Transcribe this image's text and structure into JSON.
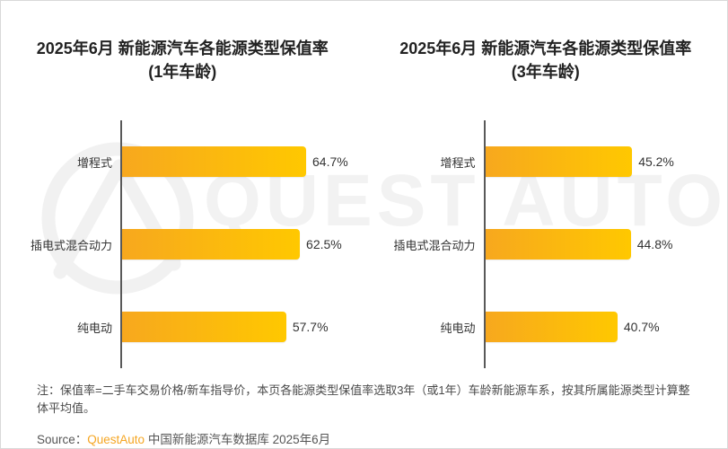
{
  "watermark": {
    "brand": "QUEST AUTO"
  },
  "colors": {
    "bar_gradient_start": "#F7A81E",
    "bar_gradient_end": "#FFC800",
    "axis": "#595959",
    "brand_orange": "#F5A623",
    "watermark_gray": "#F2F2F2",
    "title_text": "#222222",
    "body_text": "#4A4A4A"
  },
  "chart_data": [
    {
      "type": "bar",
      "orientation": "horizontal",
      "title": "2025年6月 新能源汽车各能源类型保值率",
      "subtitle": "(1年车龄)",
      "categories": [
        "增程式",
        "插电式混合动力",
        "纯电动"
      ],
      "values": [
        64.7,
        62.5,
        57.7
      ],
      "value_labels": [
        "64.7%",
        "62.5%",
        "57.7%"
      ],
      "unit": "%",
      "xlim": [
        0,
        80
      ],
      "grid": false,
      "legend": false
    },
    {
      "type": "bar",
      "orientation": "horizontal",
      "title": "2025年6月 新能源汽车各能源类型保值率",
      "subtitle": "(3年车龄)",
      "categories": [
        "增程式",
        "插电式混合动力",
        "纯电动"
      ],
      "values": [
        45.2,
        44.8,
        40.7
      ],
      "value_labels": [
        "45.2%",
        "44.8%",
        "40.7%"
      ],
      "unit": "%",
      "xlim": [
        0,
        70
      ],
      "grid": false,
      "legend": false
    }
  ],
  "footer": {
    "note": "注：保值率=二手车交易价格/新车指导价，本页各能源类型保值率选取3年（或1年）车龄新能源车系，按其所属能源类型计算整体平均值。",
    "source_prefix": "Source：",
    "source_brand": "QuestAuto",
    "source_suffix": " 中国新能源汽车数据库 2025年6月"
  }
}
